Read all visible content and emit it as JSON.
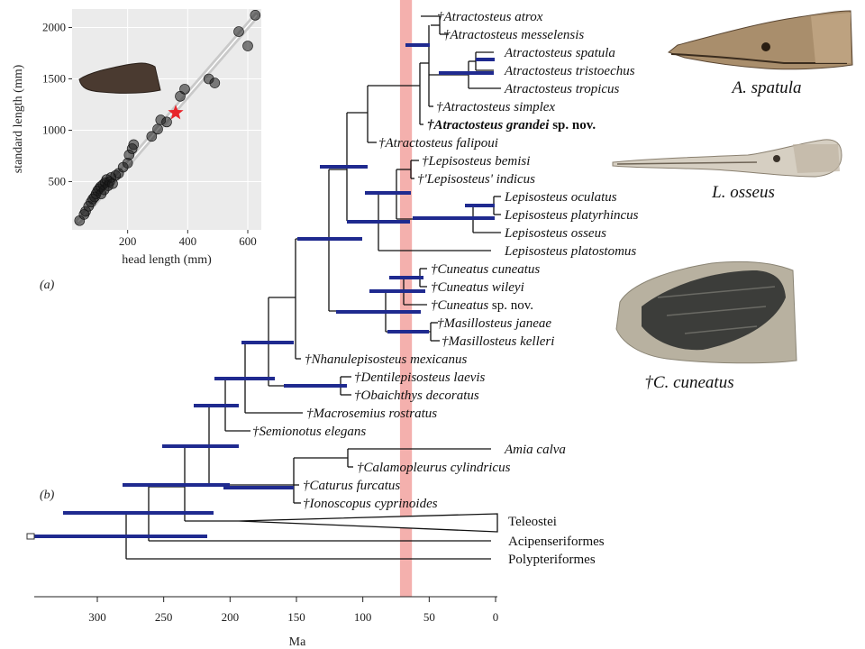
{
  "panels": {
    "a": "(a)",
    "b": "(b)"
  },
  "inset_chart": {
    "x_label": "head length (mm)",
    "y_label": "standard length (mm)",
    "x_ticks": [
      "200",
      "400",
      "600"
    ],
    "y_ticks": [
      "500",
      "1000",
      "1500",
      "2000"
    ]
  },
  "chart_data": {
    "type": "scatter",
    "xlabel": "head length (mm)",
    "ylabel": "standard length (mm)",
    "xlim": [
      15,
      645
    ],
    "ylim": [
      30,
      2180
    ],
    "points": [
      {
        "x": 40,
        "y": 120
      },
      {
        "x": 55,
        "y": 180
      },
      {
        "x": 60,
        "y": 210
      },
      {
        "x": 70,
        "y": 260
      },
      {
        "x": 78,
        "y": 300
      },
      {
        "x": 84,
        "y": 330
      },
      {
        "x": 90,
        "y": 350
      },
      {
        "x": 95,
        "y": 380
      },
      {
        "x": 100,
        "y": 410
      },
      {
        "x": 105,
        "y": 430
      },
      {
        "x": 110,
        "y": 450
      },
      {
        "x": 112,
        "y": 380
      },
      {
        "x": 118,
        "y": 470
      },
      {
        "x": 122,
        "y": 420
      },
      {
        "x": 125,
        "y": 490
      },
      {
        "x": 130,
        "y": 520
      },
      {
        "x": 135,
        "y": 460
      },
      {
        "x": 140,
        "y": 500
      },
      {
        "x": 145,
        "y": 540
      },
      {
        "x": 150,
        "y": 480
      },
      {
        "x": 160,
        "y": 560
      },
      {
        "x": 170,
        "y": 580
      },
      {
        "x": 185,
        "y": 640
      },
      {
        "x": 200,
        "y": 680
      },
      {
        "x": 205,
        "y": 760
      },
      {
        "x": 215,
        "y": 820
      },
      {
        "x": 220,
        "y": 860
      },
      {
        "x": 280,
        "y": 940
      },
      {
        "x": 300,
        "y": 1010
      },
      {
        "x": 310,
        "y": 1100
      },
      {
        "x": 330,
        "y": 1080
      },
      {
        "x": 375,
        "y": 1330
      },
      {
        "x": 390,
        "y": 1400
      },
      {
        "x": 470,
        "y": 1500
      },
      {
        "x": 490,
        "y": 1460
      },
      {
        "x": 570,
        "y": 1960
      },
      {
        "x": 600,
        "y": 1820
      },
      {
        "x": 625,
        "y": 2120
      }
    ],
    "trend_line": [
      {
        "x": 35,
        "y": 110
      },
      {
        "x": 630,
        "y": 2120
      }
    ],
    "highlight": {
      "label": "Atractosteus grandei sp. nov.",
      "x": 360,
      "y": 1170
    }
  },
  "taxa": [
    "†Atractosteus atrox",
    "†Atractosteus messelensis",
    "Atractosteus spatula",
    "Atractosteus tristoechus",
    "Atractosteus tropicus",
    "†Atractosteus simplex",
    "†Atractosteus grandei",
    "†Atractosteus falipoui",
    "†Lepisosteus bemisi",
    "†'Lepisosteus' indicus",
    "Lepisosteus oculatus",
    "Lepisosteus platyrhincus",
    "Lepisosteus osseus",
    "Lepisosteus platostomus",
    "†Cuneatus cuneatus",
    "†Cuneatus wileyi",
    "†Cuneatus",
    "†Masillosteus janeae",
    "†Masillosteus kelleri",
    "†Nhanulepisosteus mexicanus",
    "†Dentilepisosteus laevis",
    "†Obaichthys decoratus",
    "†Macrosemius rostratus",
    "†Semionotus elegans",
    "Amia calva",
    "†Calamopleurus cylindricus",
    "†Caturus furcatus",
    "†Ionoscopus cyprinoides",
    "Teleostei",
    "Acipenseriformes",
    "Polypteriformes"
  ],
  "taxon_suffixes": {
    "grandei": " sp. nov.",
    "cuneatus_sp": " sp. nov."
  },
  "species_labels": [
    "A. spatula",
    "L. osseus",
    "†C. cuneatus"
  ],
  "time_axis": {
    "label": "Ma",
    "ticks": [
      "300",
      "250",
      "200",
      "150",
      "100",
      "50",
      "0"
    ],
    "highlight_band_ma": [
      72,
      63
    ]
  }
}
